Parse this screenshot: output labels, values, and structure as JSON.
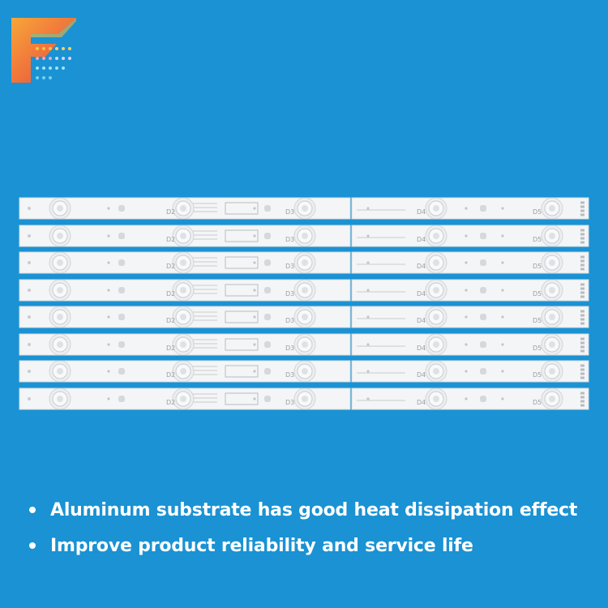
{
  "brand": {
    "logo_icon": "stylized-letter-f-logo",
    "colors": [
      "#f08a2a",
      "#e8453c",
      "#f7c948",
      "#2ec4e6"
    ]
  },
  "product": {
    "strip_count": 8,
    "strip_labels": [
      "D2",
      "D3",
      "D4",
      "D5"
    ]
  },
  "features": [
    {
      "text": "Aluminum substrate has good heat dissipation effect"
    },
    {
      "text": "Improve product reliability and service life"
    }
  ]
}
